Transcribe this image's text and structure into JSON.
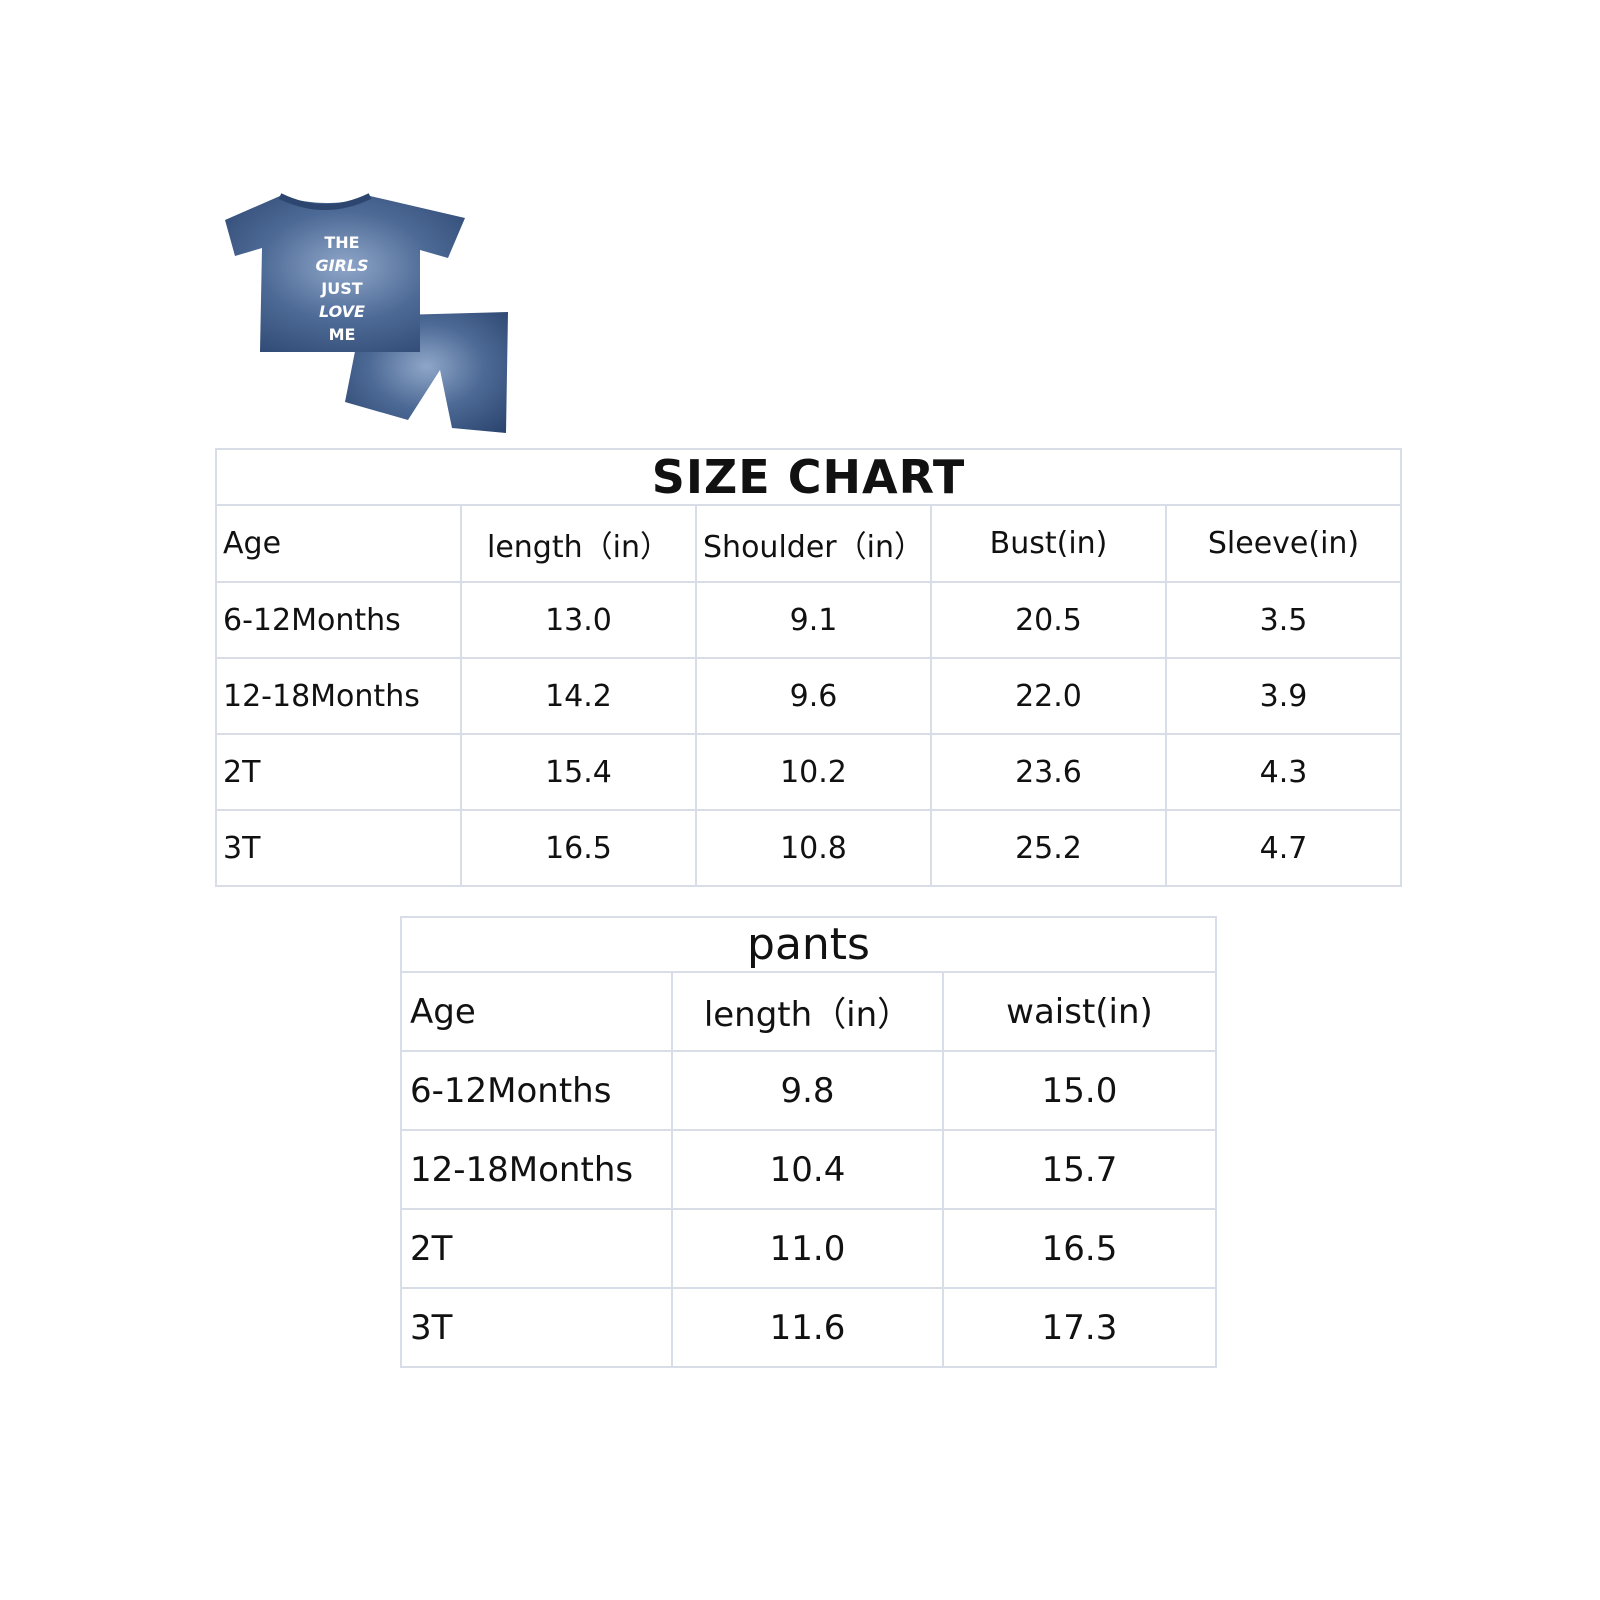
{
  "product_image": {
    "print_text": "THE GIRLS JUST LOVE ME",
    "color": "#3d5a85"
  },
  "size_chart": {
    "title": "SIZE CHART",
    "headers": [
      "Age",
      "length（in）",
      "Shoulder（in）",
      "Bust(in)",
      "Sleeve(in)"
    ],
    "rows": [
      [
        "6-12Months",
        "13.0",
        "9.1",
        "20.5",
        "3.5"
      ],
      [
        "12-18Months",
        "14.2",
        "9.6",
        "22.0",
        "3.9"
      ],
      [
        "2T",
        "15.4",
        "10.2",
        "23.6",
        "4.3"
      ],
      [
        "3T",
        "16.5",
        "10.8",
        "25.2",
        "4.7"
      ]
    ]
  },
  "pants": {
    "title": "pants",
    "headers": [
      "Age",
      "length（in）",
      "waist(in)"
    ],
    "rows": [
      [
        "6-12Months",
        "9.8",
        "15.0"
      ],
      [
        "12-18Months",
        "10.4",
        "15.7"
      ],
      [
        "2T",
        "11.0",
        "16.5"
      ],
      [
        "3T",
        "11.6",
        "17.3"
      ]
    ]
  }
}
